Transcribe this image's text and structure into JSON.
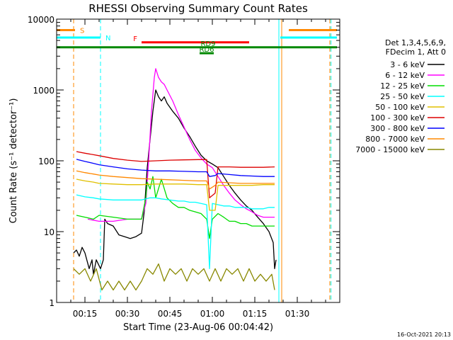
{
  "chart_data": {
    "type": "line",
    "title": "RHESSI Observing Summary Count Rates",
    "xlabel": "Start Time (23-Aug-06 00:04:42)",
    "ylabel": "Count Rate (s⁻¹ detector⁻¹)",
    "y_scale": "log",
    "ylim": [
      1,
      10000
    ],
    "xlim_minutes": [
      4.7,
      45
    ],
    "x_ticks": [
      {
        "label": "00:15",
        "minute": 15
      },
      {
        "label": "00:30",
        "minute": 30
      },
      {
        "label": "00:45",
        "minute": 45
      },
      {
        "label": "01:00",
        "minute": 60
      },
      {
        "label": "01:15",
        "minute": 75
      },
      {
        "label": "01:30",
        "minute": 90
      }
    ],
    "y_ticks": [
      {
        "label": "1",
        "value": 1
      },
      {
        "label": "10",
        "value": 10
      },
      {
        "label": "100",
        "value": 100
      },
      {
        "label": "1000",
        "value": 1000
      },
      {
        "label": "10000",
        "value": 10000
      }
    ],
    "legend_header": [
      "Det 1,3,4,5,6,9,",
      "FDecim 1, Att 0"
    ],
    "legend_position": "right",
    "series": [
      {
        "name": "3 - 6 keV",
        "color": "#000000",
        "points": [
          [
            11.0,
            5
          ],
          [
            12.0,
            5.5
          ],
          [
            13.0,
            4.5
          ],
          [
            14.0,
            6
          ],
          [
            15.0,
            5
          ],
          [
            16.5,
            3
          ],
          [
            17.5,
            4
          ],
          [
            18.0,
            2.5
          ],
          [
            19.0,
            4
          ],
          [
            20.5,
            3
          ],
          [
            21.5,
            4
          ],
          [
            22.0,
            15
          ],
          [
            23.0,
            13
          ],
          [
            25.0,
            12
          ],
          [
            27.0,
            9
          ],
          [
            29.0,
            8.5
          ],
          [
            31.0,
            8
          ],
          [
            33.0,
            8.5
          ],
          [
            35.0,
            9.5
          ],
          [
            36.0,
            20
          ],
          [
            37.0,
            80
          ],
          [
            38.0,
            200
          ],
          [
            39.0,
            500
          ],
          [
            40.0,
            1000
          ],
          [
            41.0,
            800
          ],
          [
            42.0,
            700
          ],
          [
            43.0,
            800
          ],
          [
            44.0,
            650
          ],
          [
            46.0,
            500
          ],
          [
            48.0,
            400
          ],
          [
            50.0,
            290
          ],
          [
            52.0,
            220
          ],
          [
            54.0,
            160
          ],
          [
            56.0,
            120
          ],
          [
            58.0,
            100
          ],
          [
            60.0,
            90
          ],
          [
            62.0,
            80
          ],
          [
            64.0,
            60
          ],
          [
            66.0,
            45
          ],
          [
            68.0,
            35
          ],
          [
            70.0,
            28
          ],
          [
            72.0,
            23
          ],
          [
            74.0,
            20
          ],
          [
            76.0,
            16
          ],
          [
            78.0,
            13
          ],
          [
            80.0,
            10
          ],
          [
            81.5,
            7
          ],
          [
            82.0,
            3
          ],
          [
            82.5,
            4
          ]
        ]
      },
      {
        "name": "6 - 12 keV",
        "color": "#ff00ff",
        "points": [
          [
            16.0,
            15
          ],
          [
            20.0,
            14
          ],
          [
            25.0,
            14
          ],
          [
            30.0,
            15
          ],
          [
            35.0,
            15
          ],
          [
            36.5,
            25
          ],
          [
            37.5,
            100
          ],
          [
            38.5,
            500
          ],
          [
            39.5,
            1500
          ],
          [
            40.0,
            2000
          ],
          [
            41.0,
            1500
          ],
          [
            42.0,
            1300
          ],
          [
            43.0,
            1200
          ],
          [
            44.0,
            1000
          ],
          [
            46.0,
            700
          ],
          [
            48.0,
            450
          ],
          [
            50.0,
            300
          ],
          [
            52.0,
            200
          ],
          [
            54.0,
            140
          ],
          [
            56.0,
            110
          ],
          [
            58.0,
            90
          ],
          [
            60.0,
            80
          ],
          [
            62.0,
            60
          ],
          [
            64.0,
            45
          ],
          [
            66.0,
            35
          ],
          [
            68.0,
            28
          ],
          [
            70.0,
            24
          ],
          [
            72.0,
            21
          ],
          [
            74.0,
            19
          ],
          [
            76.0,
            17
          ],
          [
            78.0,
            16
          ],
          [
            80.0,
            16
          ],
          [
            82.0,
            16
          ]
        ]
      },
      {
        "name": "12 - 25 keV",
        "color": "#00dd00",
        "points": [
          [
            12.0,
            17
          ],
          [
            15.0,
            16
          ],
          [
            18.0,
            15
          ],
          [
            20.0,
            17
          ],
          [
            25.0,
            16
          ],
          [
            30.0,
            15
          ],
          [
            35.0,
            15
          ],
          [
            36.5,
            30
          ],
          [
            37.0,
            50
          ],
          [
            38.0,
            40
          ],
          [
            39.0,
            60
          ],
          [
            40.0,
            30
          ],
          [
            42.0,
            55
          ],
          [
            44.0,
            30
          ],
          [
            46.0,
            25
          ],
          [
            48.0,
            22
          ],
          [
            50.0,
            22
          ],
          [
            52.0,
            20
          ],
          [
            54.0,
            19
          ],
          [
            56.0,
            18
          ],
          [
            58.0,
            15
          ],
          [
            59.0,
            8
          ],
          [
            60.0,
            15
          ],
          [
            62.0,
            18
          ],
          [
            64.0,
            16
          ],
          [
            66.0,
            14
          ],
          [
            68.0,
            14
          ],
          [
            70.0,
            13
          ],
          [
            72.0,
            13
          ],
          [
            74.0,
            12
          ],
          [
            76.0,
            12
          ],
          [
            78.0,
            12
          ],
          [
            80.0,
            12
          ],
          [
            82.0,
            12
          ]
        ]
      },
      {
        "name": "25 - 50 keV",
        "color": "#00ffff",
        "points": [
          [
            12.0,
            33
          ],
          [
            15.0,
            31
          ],
          [
            18.0,
            30
          ],
          [
            20.0,
            29
          ],
          [
            25.0,
            28
          ],
          [
            30.0,
            28
          ],
          [
            35.0,
            28
          ],
          [
            38.0,
            30
          ],
          [
            40.0,
            30
          ],
          [
            42.0,
            29
          ],
          [
            45.0,
            28
          ],
          [
            48.0,
            27
          ],
          [
            50.0,
            27
          ],
          [
            52.0,
            26
          ],
          [
            54.0,
            26
          ],
          [
            56.0,
            25
          ],
          [
            58.0,
            24
          ],
          [
            59.0,
            3
          ],
          [
            60.0,
            25
          ],
          [
            62.0,
            24
          ],
          [
            64.0,
            23
          ],
          [
            66.0,
            23
          ],
          [
            68.0,
            22
          ],
          [
            70.0,
            22
          ],
          [
            72.0,
            22
          ],
          [
            74.0,
            21
          ],
          [
            76.0,
            21
          ],
          [
            78.0,
            21
          ],
          [
            80.0,
            22
          ],
          [
            82.0,
            22
          ]
        ]
      },
      {
        "name": "50 - 100 keV",
        "color": "#e0c000",
        "points": [
          [
            12.0,
            55
          ],
          [
            15.0,
            52
          ],
          [
            18.0,
            50
          ],
          [
            20.0,
            48
          ],
          [
            25.0,
            47
          ],
          [
            30.0,
            46
          ],
          [
            35.0,
            46
          ],
          [
            40.0,
            47
          ],
          [
            45.0,
            47
          ],
          [
            50.0,
            47
          ],
          [
            55.0,
            46
          ],
          [
            58.0,
            46
          ],
          [
            59.0,
            20
          ],
          [
            61.0,
            20
          ],
          [
            62.0,
            45
          ],
          [
            66.0,
            45
          ],
          [
            70.0,
            45
          ],
          [
            74.0,
            45
          ],
          [
            78.0,
            46
          ],
          [
            82.0,
            46
          ]
        ]
      },
      {
        "name": "100 - 300 keV",
        "color": "#dd0000",
        "points": [
          [
            12.0,
            135
          ],
          [
            15.0,
            128
          ],
          [
            18.0,
            122
          ],
          [
            20.0,
            118
          ],
          [
            25.0,
            108
          ],
          [
            30.0,
            102
          ],
          [
            35.0,
            98
          ],
          [
            40.0,
            100
          ],
          [
            45.0,
            102
          ],
          [
            50.0,
            103
          ],
          [
            55.0,
            104
          ],
          [
            58.0,
            104
          ],
          [
            59.0,
            30
          ],
          [
            61.0,
            35
          ],
          [
            62.0,
            82
          ],
          [
            66.0,
            82
          ],
          [
            70.0,
            81
          ],
          [
            74.0,
            81
          ],
          [
            78.0,
            81
          ],
          [
            82.0,
            82
          ]
        ]
      },
      {
        "name": "300 - 800 keV",
        "color": "#0000ff",
        "points": [
          [
            12.0,
            105
          ],
          [
            15.0,
            98
          ],
          [
            18.0,
            92
          ],
          [
            20.0,
            88
          ],
          [
            25.0,
            82
          ],
          [
            30.0,
            77
          ],
          [
            35.0,
            74
          ],
          [
            40.0,
            72
          ],
          [
            45.0,
            72
          ],
          [
            50.0,
            71
          ],
          [
            55.0,
            70
          ],
          [
            58.0,
            70
          ],
          [
            59.0,
            60
          ],
          [
            61.0,
            62
          ],
          [
            62.0,
            66
          ],
          [
            66.0,
            64
          ],
          [
            70.0,
            62
          ],
          [
            74.0,
            61
          ],
          [
            78.0,
            60
          ],
          [
            82.0,
            60
          ]
        ]
      },
      {
        "name": "800 - 7000 keV",
        "color": "#ff8800",
        "points": [
          [
            12.0,
            72
          ],
          [
            15.0,
            68
          ],
          [
            18.0,
            65
          ],
          [
            20.0,
            63
          ],
          [
            25.0,
            60
          ],
          [
            30.0,
            58
          ],
          [
            35.0,
            56
          ],
          [
            40.0,
            55
          ],
          [
            45.0,
            54
          ],
          [
            50.0,
            53
          ],
          [
            55.0,
            52
          ],
          [
            58.0,
            52
          ],
          [
            59.0,
            40
          ],
          [
            61.0,
            45
          ],
          [
            62.0,
            50
          ],
          [
            66.0,
            49
          ],
          [
            70.0,
            48
          ],
          [
            74.0,
            48
          ],
          [
            78.0,
            48
          ],
          [
            82.0,
            48
          ]
        ]
      },
      {
        "name": "7000 - 15000 keV",
        "color": "#888800",
        "points": [
          [
            11.0,
            3
          ],
          [
            13.0,
            2.5
          ],
          [
            15.0,
            3
          ],
          [
            17.0,
            2
          ],
          [
            19.0,
            3
          ],
          [
            21.0,
            1.5
          ],
          [
            23.0,
            2
          ],
          [
            25.0,
            1.5
          ],
          [
            27.0,
            2
          ],
          [
            29.0,
            1.5
          ],
          [
            31.0,
            2
          ],
          [
            33.0,
            1.5
          ],
          [
            35.0,
            2
          ],
          [
            37.0,
            3
          ],
          [
            39.0,
            2.5
          ],
          [
            41.0,
            3.5
          ],
          [
            43.0,
            2
          ],
          [
            45.0,
            3
          ],
          [
            47.0,
            2.5
          ],
          [
            49.0,
            3
          ],
          [
            51.0,
            2
          ],
          [
            53.0,
            3
          ],
          [
            55.0,
            2.5
          ],
          [
            57.0,
            3
          ],
          [
            59.0,
            2
          ],
          [
            61.0,
            3
          ],
          [
            63.0,
            2
          ],
          [
            65.0,
            3
          ],
          [
            67.0,
            2.5
          ],
          [
            69.0,
            3
          ],
          [
            71.0,
            2
          ],
          [
            73.0,
            3
          ],
          [
            75.0,
            2
          ],
          [
            77.0,
            2.5
          ],
          [
            79.0,
            2
          ],
          [
            81.0,
            2.5
          ],
          [
            82.0,
            1.5
          ]
        ]
      }
    ],
    "flags": [
      {
        "label": "S",
        "color": "#ff8800",
        "y": 7000,
        "x_start": 4.7,
        "x_end": 11.5,
        "x2_start": 87,
        "x2_end": 104
      },
      {
        "label": "N",
        "color": "#00ffff",
        "y": 5500,
        "x_start": 4.7,
        "x_end": 20.5,
        "x2_start": 84,
        "x2_end": 104
      },
      {
        "label": "F",
        "color": "#ff0000",
        "y": 4700,
        "x_start": 35,
        "x_end": 73
      },
      {
        "label": "RD9",
        "color": "#008800",
        "y": 4000,
        "x_start": 4.7,
        "x_end": 104
      },
      {
        "label": "RD6",
        "color": "#008800",
        "y": 3300,
        "x_start": 55.5,
        "x_end": 60.5
      }
    ],
    "vlines": [
      {
        "minute": 11.0,
        "color": "#ff8800",
        "style": "dashed"
      },
      {
        "minute": 20.5,
        "color": "#00ffff",
        "style": "dashed"
      },
      {
        "minute": 83.5,
        "color": "#00ffff",
        "style": "solid"
      },
      {
        "minute": 84.5,
        "color": "#ff8800",
        "style": "solid"
      },
      {
        "minute": 101.5,
        "color": "#ff8800",
        "style": "dashed"
      },
      {
        "minute": 101.9,
        "color": "#00ffff",
        "style": "dashed"
      }
    ],
    "timestamp": "16-Oct-2021 20:13"
  }
}
